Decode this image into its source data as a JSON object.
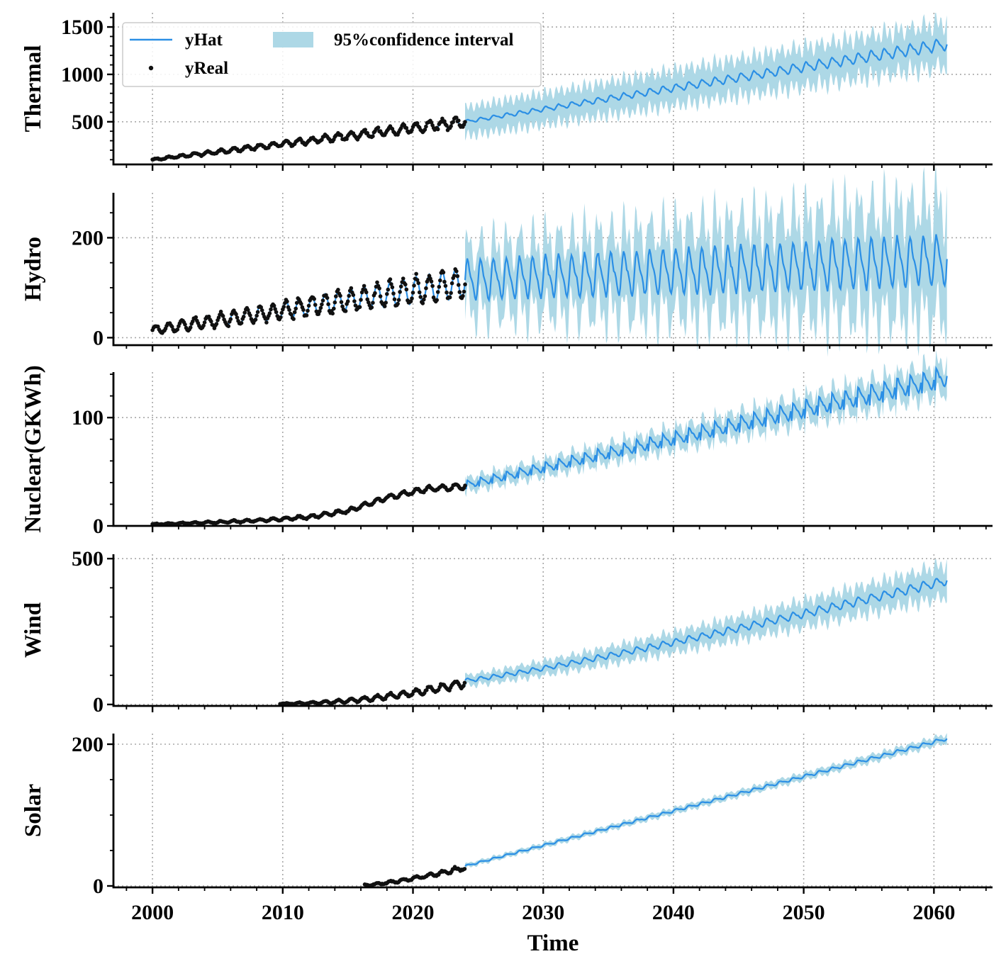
{
  "chart_data": {
    "type": "line",
    "xlabel": "Time",
    "xlim": [
      1997,
      2064.5
    ],
    "xticks": [
      2000,
      2010,
      2020,
      2030,
      2040,
      2050,
      2060
    ],
    "forecast_start": 2024.0,
    "forecast_end": 2061.0,
    "colors": {
      "yhat": "#2b8fe5",
      "ci": "#add8e6",
      "real": "#111111"
    },
    "legend": {
      "placement": "upper-left (top panel)",
      "entries": [
        {
          "key": "yhat",
          "label": "yHat",
          "kind": "line"
        },
        {
          "key": "ci",
          "label": "95%confidence interval",
          "kind": "band"
        },
        {
          "key": "real",
          "label": "yReal",
          "kind": "marker"
        }
      ]
    },
    "panels": [
      {
        "id": "thermal",
        "ylabel": "Thermal",
        "ylim": [
          50,
          1650
        ],
        "yticks": [
          500,
          1000,
          1500
        ],
        "yminor_step": 100,
        "real": {
          "start": 2000.0,
          "end": 2024.0,
          "value_start": 100,
          "value_end": 500,
          "curve": 1.0,
          "season_amp_start": 8,
          "season_amp_end": 55,
          "noise": 18
        },
        "forecast": {
          "value_start": 500,
          "value_end": 1320,
          "curve": 1.0,
          "season_amp_start": 15,
          "season_amp_end": 55,
          "ci_start": 150,
          "ci_end": 230
        }
      },
      {
        "id": "hydro",
        "ylabel": "Hydro",
        "ylim": [
          -15,
          290
        ],
        "yticks": [
          0,
          200
        ],
        "yminor_step": 50,
        "real": {
          "start": 2000.0,
          "end": 2024.0,
          "value_start": 15,
          "value_end": 110,
          "curve": 1.0,
          "season_amp_start": 8,
          "season_amp_end": 30,
          "noise": 7
        },
        "forecast": {
          "value_start": 115,
          "value_end": 155,
          "curve": 1.0,
          "season_amp_start": 35,
          "season_amp_end": 45,
          "ci_start": 60,
          "ci_end": 110
        }
      },
      {
        "id": "nuclear",
        "ylabel": "Nuclear(GKWh)",
        "ylim": [
          0,
          142
        ],
        "yticks": [
          0,
          100
        ],
        "yminor_step": 20,
        "real": {
          "start": 2000.0,
          "end": 2024.0,
          "points": [
            [
              2000,
              1.5
            ],
            [
              2004,
              3
            ],
            [
              2008,
              5
            ],
            [
              2012,
              8
            ],
            [
              2015,
              14
            ],
            [
              2018,
              26
            ],
            [
              2021,
              34
            ],
            [
              2024,
              37
            ]
          ],
          "season_amp_start": 0.4,
          "season_amp_end": 2.5,
          "noise": 1.0
        },
        "forecast": {
          "value_start": 38,
          "value_end": 138,
          "curve": 1.0,
          "season_amp_start": 3,
          "season_amp_end": 8,
          "ci_start": 6,
          "ci_end": 14,
          "dips": true
        }
      },
      {
        "id": "wind",
        "ylabel": "Wind",
        "ylim": [
          -5,
          515
        ],
        "yticks": [
          0,
          500
        ],
        "yminor_step": 100,
        "real": {
          "start": 2009.8,
          "end": 2024.0,
          "value_start": 3,
          "value_end": 75,
          "curve": 2.0,
          "season_amp_start": 1,
          "season_amp_end": 14,
          "noise": 4
        },
        "forecast": {
          "value_start": 82,
          "value_end": 425,
          "curve": 1.15,
          "season_amp_start": 6,
          "season_amp_end": 14,
          "ci_start": 18,
          "ci_end": 55
        }
      },
      {
        "id": "solar",
        "ylabel": "Solar",
        "ylim": [
          -2,
          215
        ],
        "yticks": [
          0,
          200
        ],
        "yminor_step": 50,
        "real": {
          "start": 2016.3,
          "end": 2024.0,
          "value_start": 1,
          "value_end": 26,
          "curve": 1.3,
          "season_amp_start": 1,
          "season_amp_end": 3,
          "noise": 2
        },
        "forecast": {
          "value_start": 28,
          "value_end": 208,
          "curve": 1.0,
          "season_amp_start": 1.2,
          "season_amp_end": 2.2,
          "ci_start": 3,
          "ci_end": 6
        }
      }
    ]
  }
}
